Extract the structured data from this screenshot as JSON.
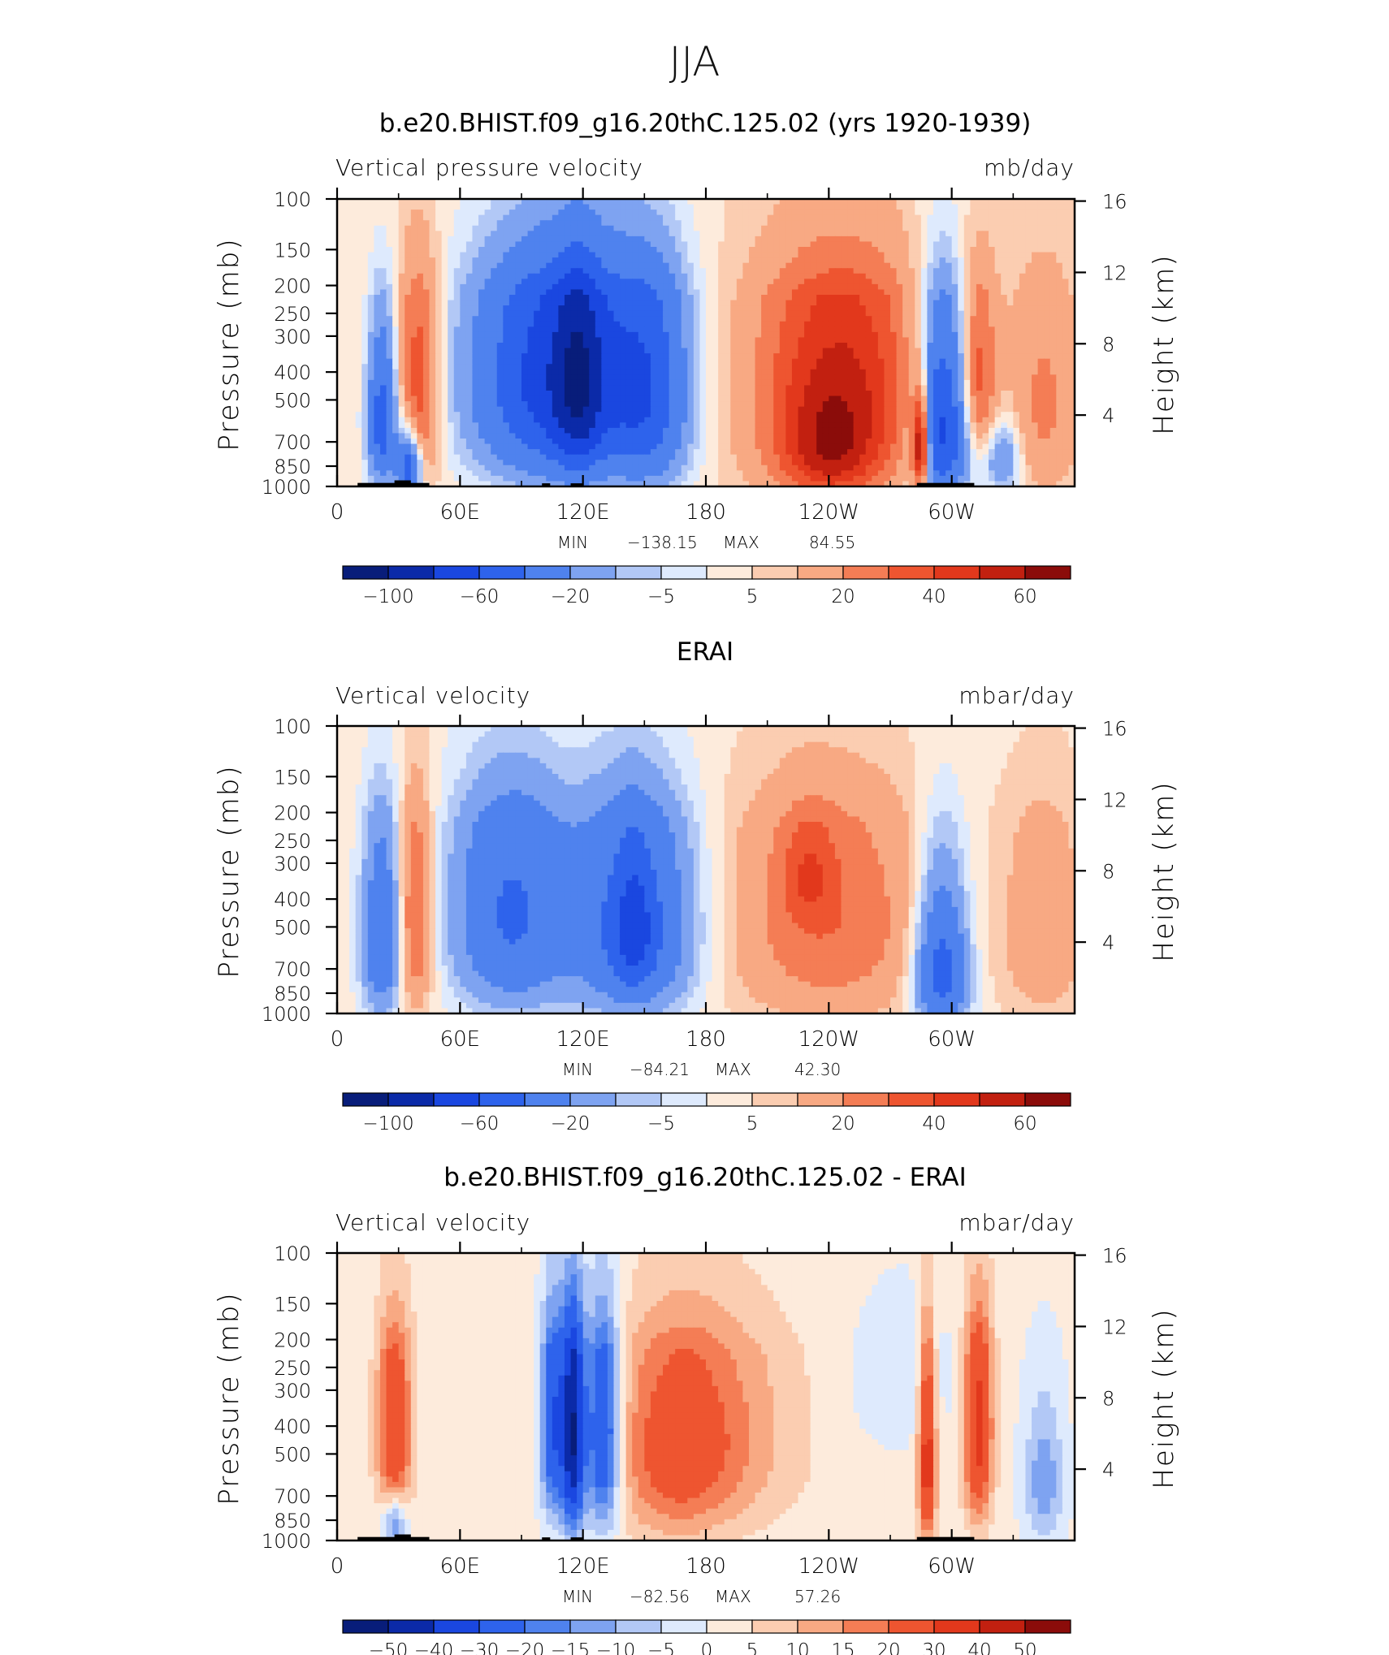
{
  "figure": {
    "title": "JJA"
  },
  "colors": {
    "scale": [
      "#081d7a",
      "#0b2aa8",
      "#1a47e0",
      "#2e63ec",
      "#4f82ee",
      "#7ea3f1",
      "#b2c8f6",
      "#deeafd",
      "#fdebdc",
      "#fbcdb1",
      "#f8a983",
      "#f47d55",
      "#ee5530",
      "#e2381c",
      "#c22010",
      "#8b0c0a"
    ],
    "land": "#000000"
  },
  "chart_data": [
    {
      "type": "heatmap",
      "title": "b.e20.BHIST.f09_g16.20thC.125.02 (yrs 1920-1939)",
      "left_label": "Vertical pressure velocity",
      "right_label": "mb/day",
      "ylabel": "Pressure (mb)",
      "ylabel_right": "Height (km)",
      "x_ticks": [
        "0",
        "60E",
        "120E",
        "180",
        "120W",
        "60W"
      ],
      "y_ticks": [
        "100",
        "150",
        "200",
        "250",
        "300",
        "400",
        "500",
        "700",
        "850",
        "1000"
      ],
      "height_ticks": [
        "16",
        "12",
        "8",
        "4"
      ],
      "stats": {
        "min_label": "MIN",
        "min": "−138.15",
        "max_label": "MAX",
        "max": "84.55"
      },
      "colorbar_labels": [
        "−100",
        "−60",
        "−20",
        "−5",
        "5",
        "20",
        "40",
        "60"
      ],
      "field": "model"
    },
    {
      "type": "heatmap",
      "title": "ERAI",
      "left_label": "Vertical velocity",
      "right_label": "mbar/day",
      "ylabel": "Pressure (mb)",
      "ylabel_right": "Height (km)",
      "x_ticks": [
        "0",
        "60E",
        "120E",
        "180",
        "120W",
        "60W"
      ],
      "y_ticks": [
        "100",
        "150",
        "200",
        "250",
        "300",
        "400",
        "500",
        "700",
        "850",
        "1000"
      ],
      "height_ticks": [
        "16",
        "12",
        "8",
        "4"
      ],
      "stats": {
        "min_label": "MIN",
        "min": "−84.21",
        "max_label": "MAX",
        "max": "42.30"
      },
      "colorbar_labels": [
        "−100",
        "−60",
        "−20",
        "−5",
        "5",
        "20",
        "40",
        "60"
      ],
      "field": "obs"
    },
    {
      "type": "heatmap",
      "title": "b.e20.BHIST.f09_g16.20thC.125.02 - ERAI",
      "left_label": "Vertical velocity",
      "right_label": "mbar/day",
      "ylabel": "Pressure (mb)",
      "ylabel_right": "Height (km)",
      "x_ticks": [
        "0",
        "60E",
        "120E",
        "180",
        "120W",
        "60W"
      ],
      "y_ticks": [
        "100",
        "150",
        "200",
        "250",
        "300",
        "400",
        "500",
        "700",
        "850",
        "1000"
      ],
      "height_ticks": [
        "16",
        "12",
        "8",
        "4"
      ],
      "stats": {
        "min_label": "MIN",
        "min": "−82.56",
        "max_label": "MAX",
        "max": "57.26"
      },
      "colorbar_labels": [
        "−50",
        "−40",
        "−30",
        "−20",
        "−15",
        "−10",
        "−5",
        "0",
        "5",
        "10",
        "15",
        "20",
        "30",
        "40",
        "50"
      ],
      "field": "diff"
    }
  ]
}
